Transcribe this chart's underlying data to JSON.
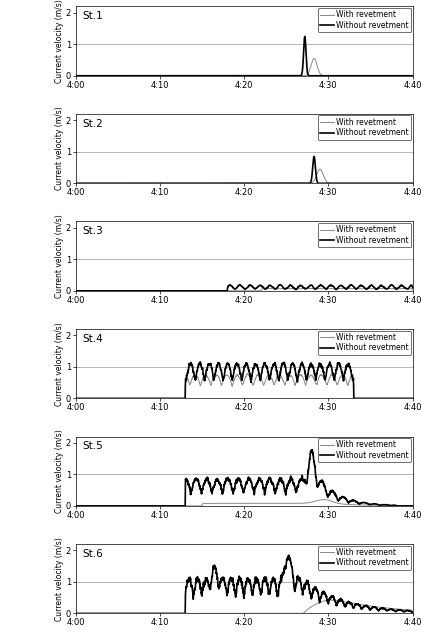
{
  "stations": [
    "St.1",
    "St.2",
    "St.3",
    "St.4",
    "St.5",
    "St.6"
  ],
  "ylabel": "Current velocity (m/s)",
  "yticks": [
    0,
    1,
    2
  ],
  "ylim": [
    0,
    2.2
  ],
  "legend_with": "With revetment",
  "legend_without": "Without revetment",
  "color_with": "#888888",
  "color_without": "#000000",
  "lw_with": 0.7,
  "lw_without": 1.2,
  "hline_y": 1.0,
  "hline_color": "#aaaaaa",
  "hline_lw": 0.6,
  "figsize": [
    4.21,
    6.39
  ],
  "dpi": 100,
  "xtick_vals": [
    0,
    10,
    20,
    30,
    40
  ],
  "xtick_labels": [
    "4:00",
    "4:10",
    "4:20",
    "4:30",
    "4:40"
  ]
}
